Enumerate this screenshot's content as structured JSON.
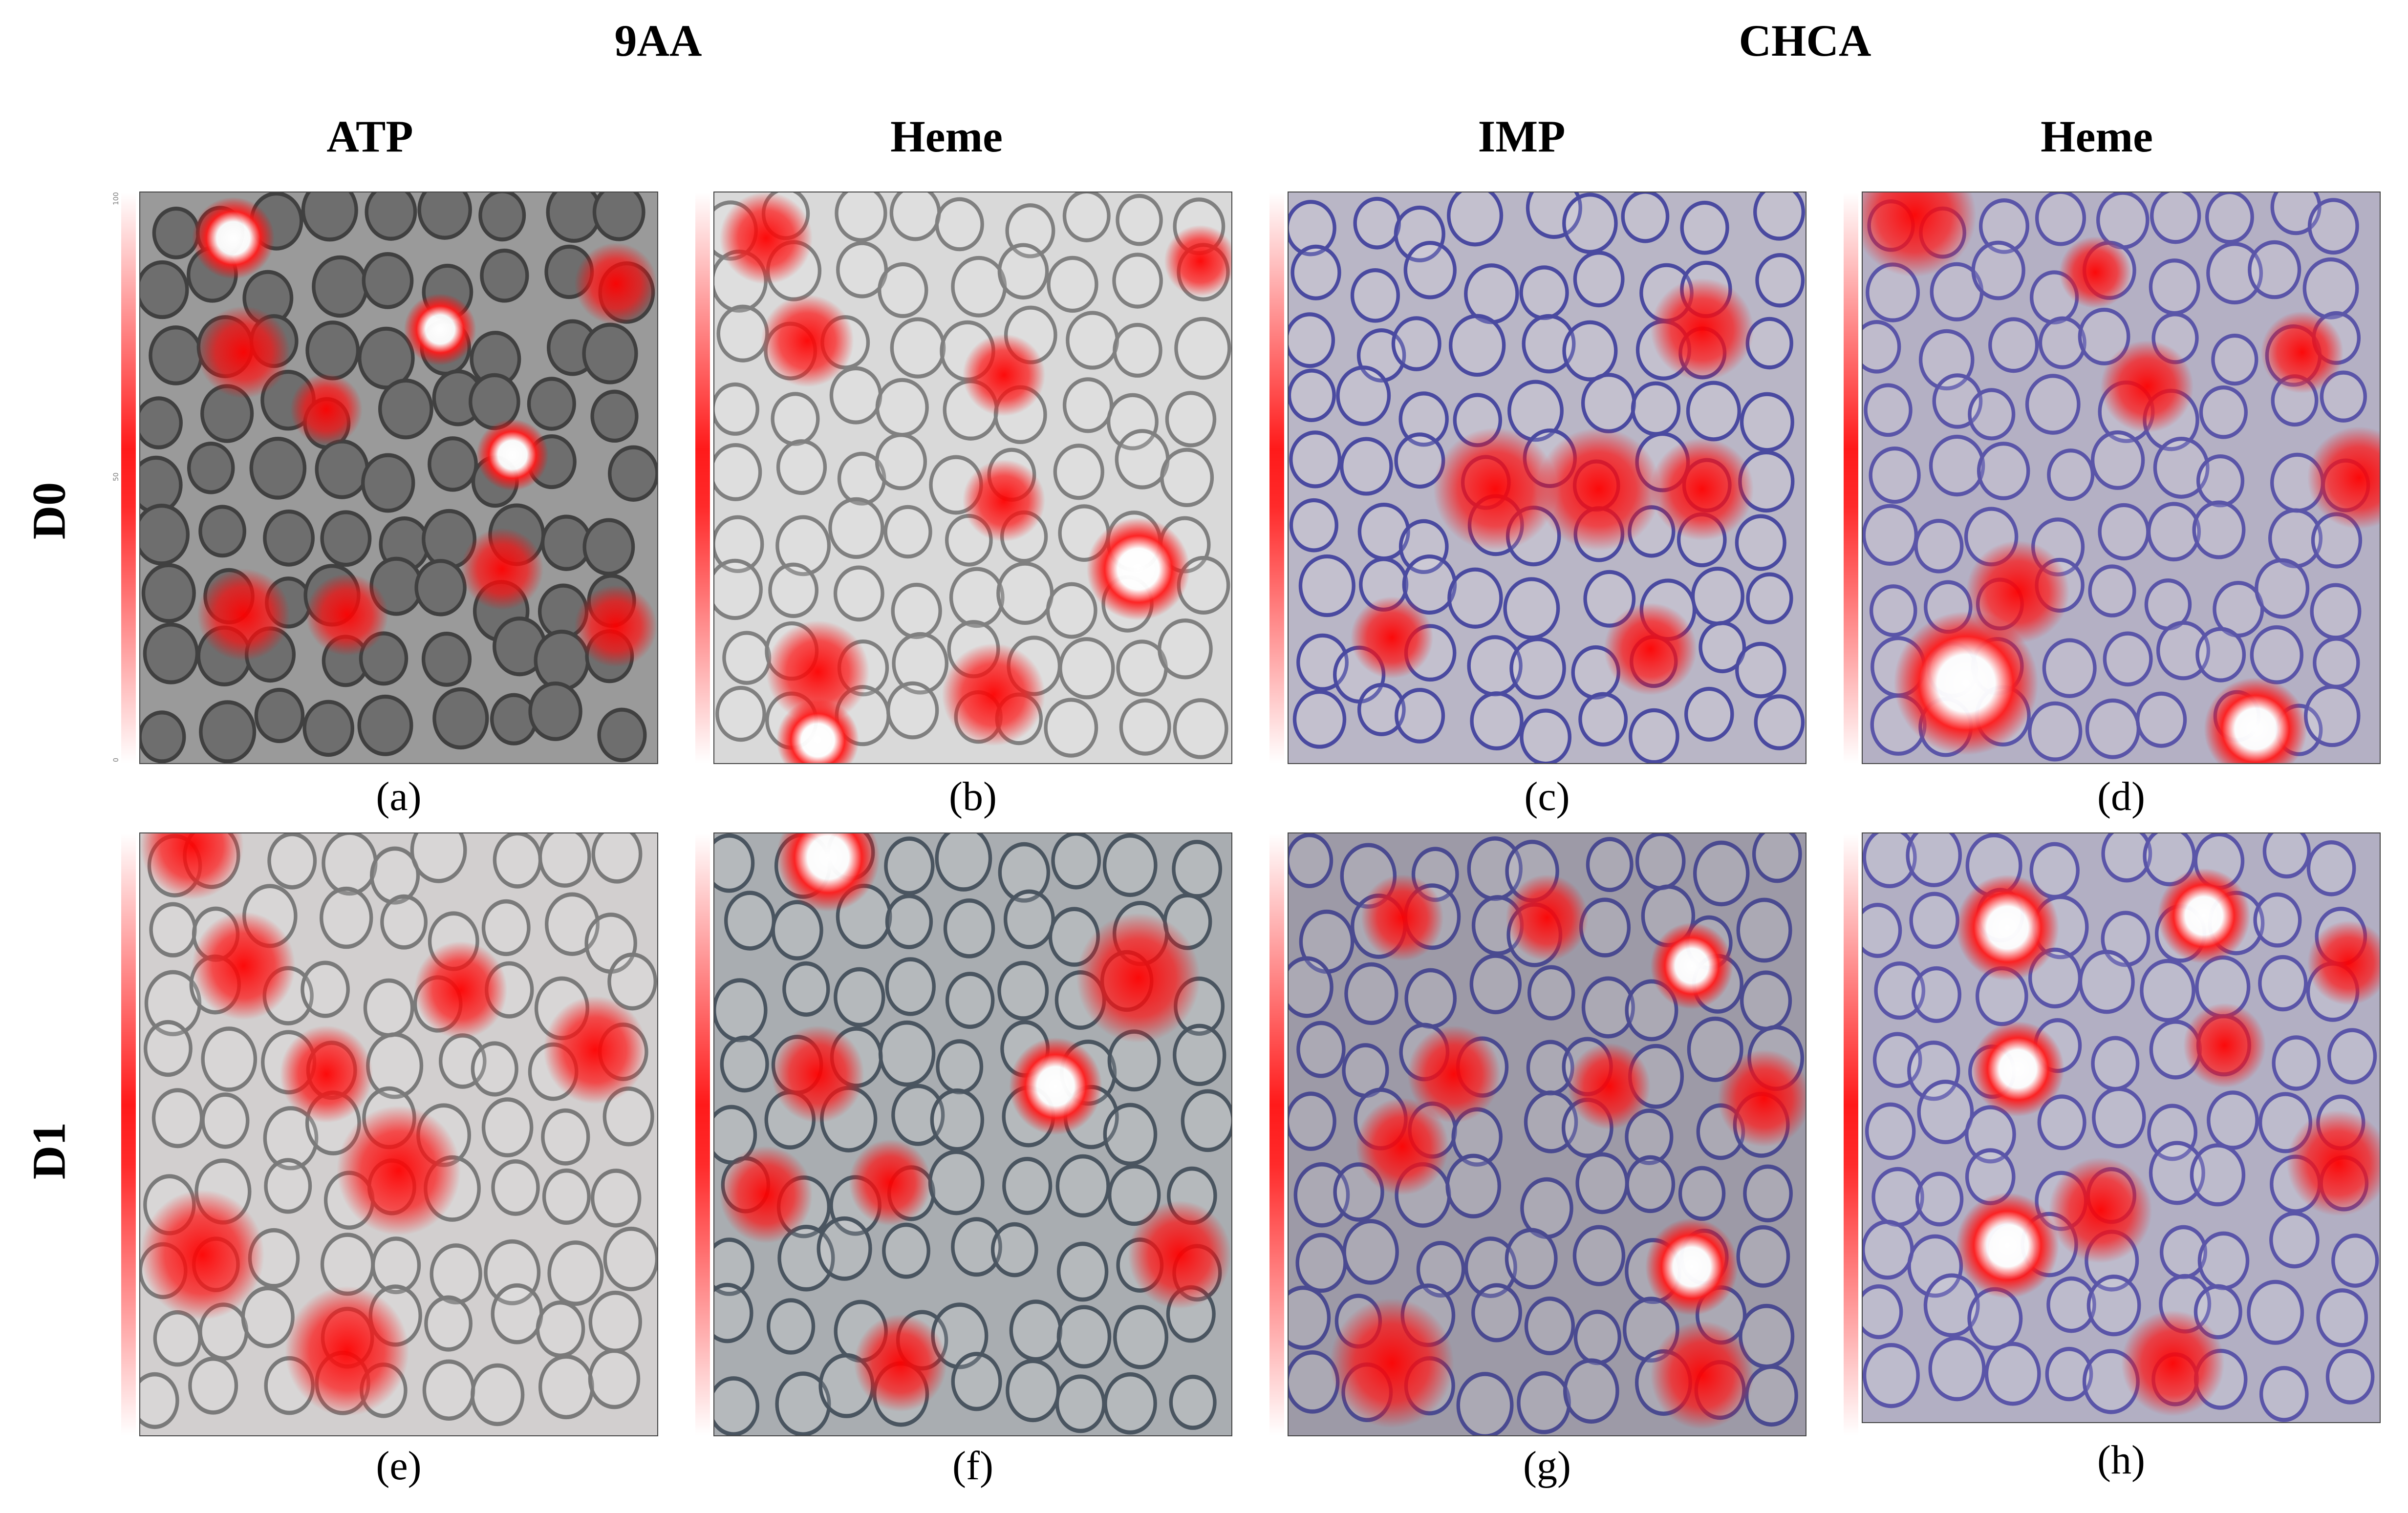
{
  "groups": [
    {
      "label": "9AA"
    },
    {
      "label": "CHCA"
    }
  ],
  "columns": [
    {
      "label": "ATP"
    },
    {
      "label": "Heme"
    },
    {
      "label": "IMP"
    },
    {
      "label": "Heme"
    }
  ],
  "rows": [
    {
      "label": "D0"
    },
    {
      "label": "D1"
    }
  ],
  "panels": [
    {
      "caption": "(a)",
      "bg": "#9a9a9a"
    },
    {
      "caption": "(b)",
      "bg": "#d9d9d9"
    },
    {
      "caption": "(c)",
      "bg": "#b9b6c6"
    },
    {
      "caption": "(d)",
      "bg": "#b4b0c4"
    },
    {
      "caption": "(e)",
      "bg": "#d2cfcf"
    },
    {
      "caption": "(f)",
      "bg": "#a9adb1"
    },
    {
      "caption": "(g)",
      "bg": "#9d9aa7"
    },
    {
      "caption": "(h)",
      "bg": "#b2afc3"
    }
  ],
  "colorbar": {
    "top": "100",
    "mid": "50",
    "bottom": "0"
  },
  "colors": {
    "heat": "#ff0000",
    "hot": "#ffffff"
  }
}
